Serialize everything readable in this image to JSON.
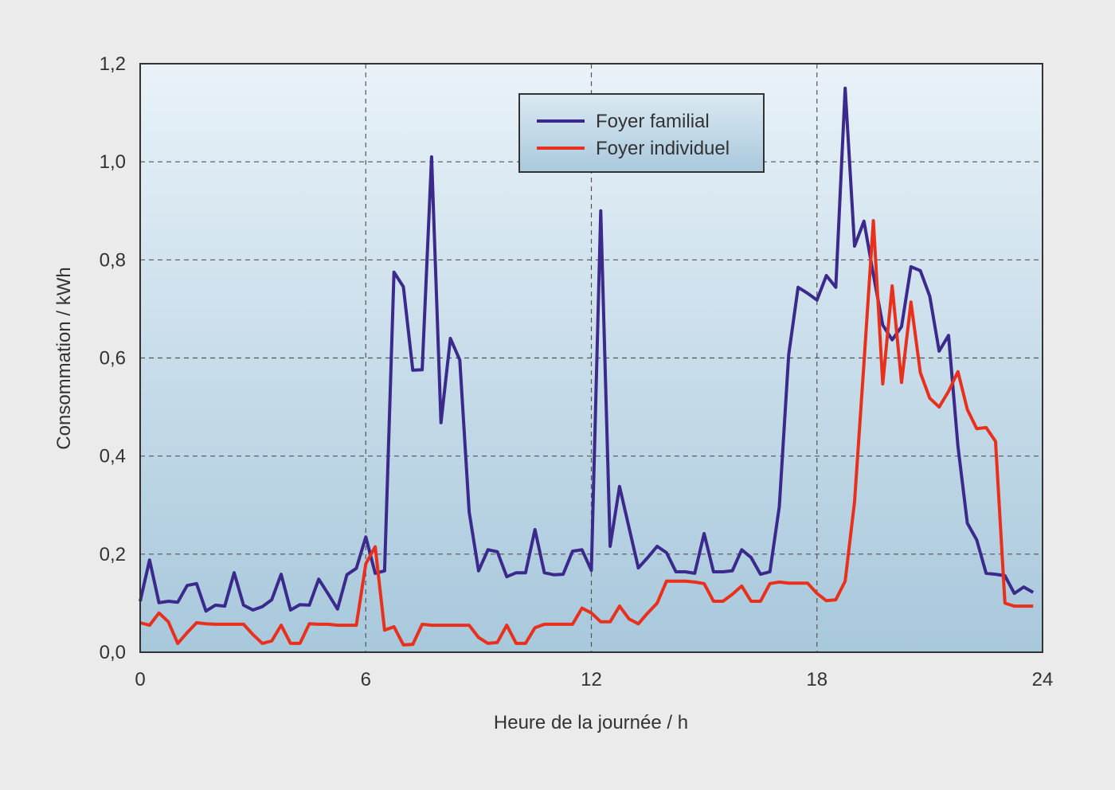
{
  "chart_data": {
    "type": "line",
    "title": "",
    "xlabel": "Heure de la journée / h",
    "ylabel": "Consommation / kWh",
    "xlim": [
      0,
      24
    ],
    "ylim": [
      0,
      1.2
    ],
    "xticks": [
      "0",
      "6",
      "12",
      "18",
      "24"
    ],
    "yticks": [
      "0,0",
      "0,2",
      "0,4",
      "0,6",
      "0,8",
      "1,0",
      "1,2"
    ],
    "grid": true,
    "legend_position": "top-center",
    "x_step_hours": 0.25,
    "series": [
      {
        "name": "Foyer familial",
        "color": "#3b2a8c",
        "values": [
          0.104,
          0.188,
          0.101,
          0.104,
          0.102,
          0.136,
          0.14,
          0.084,
          0.096,
          0.094,
          0.162,
          0.096,
          0.086,
          0.093,
          0.107,
          0.159,
          0.086,
          0.097,
          0.096,
          0.149,
          0.119,
          0.088,
          0.158,
          0.171,
          0.235,
          0.161,
          0.166,
          0.775,
          0.745,
          0.575,
          0.576,
          1.01,
          0.468,
          0.64,
          0.596,
          0.286,
          0.166,
          0.209,
          0.205,
          0.154,
          0.162,
          0.162,
          0.25,
          0.162,
          0.158,
          0.159,
          0.206,
          0.209,
          0.167,
          0.9,
          0.216,
          0.338,
          0.255,
          0.172,
          0.193,
          0.216,
          0.203,
          0.164,
          0.164,
          0.161,
          0.242,
          0.164,
          0.164,
          0.166,
          0.209,
          0.193,
          0.159,
          0.164,
          0.297,
          0.607,
          0.744,
          0.732,
          0.718,
          0.768,
          0.744,
          1.15,
          0.828,
          0.879,
          0.77,
          0.667,
          0.637,
          0.664,
          0.786,
          0.778,
          0.726,
          0.614,
          0.646,
          0.42,
          0.263,
          0.229,
          0.161,
          0.159,
          0.156,
          0.12,
          0.133,
          0.122
        ]
      },
      {
        "name": "Foyer individuel",
        "color": "#e8301c",
        "values": [
          0.06,
          0.055,
          0.08,
          0.062,
          0.018,
          0.04,
          0.06,
          0.058,
          0.057,
          0.057,
          0.057,
          0.057,
          0.036,
          0.018,
          0.023,
          0.055,
          0.018,
          0.018,
          0.058,
          0.057,
          0.057,
          0.055,
          0.055,
          0.055,
          0.18,
          0.215,
          0.045,
          0.052,
          0.015,
          0.016,
          0.057,
          0.055,
          0.055,
          0.055,
          0.055,
          0.055,
          0.03,
          0.018,
          0.02,
          0.055,
          0.018,
          0.018,
          0.05,
          0.057,
          0.057,
          0.057,
          0.057,
          0.09,
          0.08,
          0.062,
          0.062,
          0.094,
          0.068,
          0.058,
          0.08,
          0.1,
          0.145,
          0.145,
          0.145,
          0.143,
          0.14,
          0.104,
          0.104,
          0.118,
          0.135,
          0.104,
          0.104,
          0.14,
          0.143,
          0.141,
          0.141,
          0.141,
          0.12,
          0.105,
          0.107,
          0.145,
          0.307,
          0.59,
          0.88,
          0.547,
          0.747,
          0.55,
          0.714,
          0.57,
          0.518,
          0.5,
          0.532,
          0.572,
          0.495,
          0.456,
          0.458,
          0.43,
          0.1,
          0.094,
          0.094,
          0.094
        ]
      }
    ]
  }
}
